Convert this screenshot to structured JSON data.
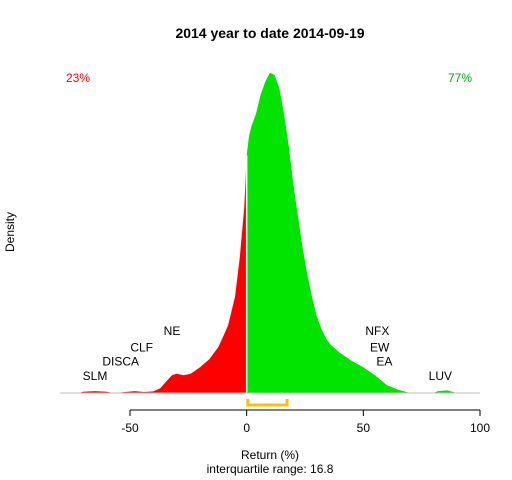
{
  "chart_data": {
    "type": "area",
    "title": "2014  year to date 2014-09-19",
    "xlabel": "Return (%)",
    "ylabel": "Density",
    "subtitle": "interquartile range: 16.8",
    "xlim": [
      -80,
      100
    ],
    "x_ticks": [
      -50,
      0,
      50,
      100
    ],
    "x_tick_labels": [
      "-50",
      "0",
      "50",
      "100"
    ],
    "ylim": [
      0,
      1.0
    ],
    "grid": false,
    "negative_share": "23%",
    "positive_share": "77%",
    "split_at": 0,
    "interquartile": {
      "q1": 0.5,
      "q3": 17.3,
      "width_label": "16.8"
    },
    "density": [
      [
        -72,
        0.0
      ],
      [
        -70,
        0.004
      ],
      [
        -65,
        0.006
      ],
      [
        -60,
        0.004
      ],
      [
        -57,
        0.0
      ],
      [
        -52,
        0.003
      ],
      [
        -48,
        0.006
      ],
      [
        -44,
        0.003
      ],
      [
        -40,
        0.005
      ],
      [
        -37,
        0.015
      ],
      [
        -34,
        0.04
      ],
      [
        -32,
        0.055
      ],
      [
        -30,
        0.06
      ],
      [
        -27,
        0.055
      ],
      [
        -24,
        0.06
      ],
      [
        -20,
        0.08
      ],
      [
        -16,
        0.105
      ],
      [
        -12,
        0.145
      ],
      [
        -8,
        0.21
      ],
      [
        -5,
        0.3
      ],
      [
        -3,
        0.42
      ],
      [
        -1,
        0.58
      ],
      [
        0,
        0.74
      ],
      [
        1,
        0.8
      ],
      [
        2,
        0.83
      ],
      [
        4,
        0.87
      ],
      [
        6,
        0.93
      ],
      [
        8,
        0.97
      ],
      [
        10,
        0.998
      ],
      [
        12,
        0.99
      ],
      [
        14,
        0.95
      ],
      [
        16,
        0.87
      ],
      [
        18,
        0.77
      ],
      [
        20,
        0.65
      ],
      [
        22,
        0.55
      ],
      [
        24,
        0.45
      ],
      [
        26,
        0.37
      ],
      [
        28,
        0.3
      ],
      [
        30,
        0.24
      ],
      [
        32,
        0.2
      ],
      [
        34,
        0.17
      ],
      [
        36,
        0.15
      ],
      [
        40,
        0.125
      ],
      [
        45,
        0.1
      ],
      [
        50,
        0.08
      ],
      [
        55,
        0.055
      ],
      [
        60,
        0.025
      ],
      [
        65,
        0.01
      ],
      [
        70,
        0.0
      ],
      [
        80,
        0.0
      ],
      [
        82,
        0.006
      ],
      [
        86,
        0.008
      ],
      [
        90,
        0.0
      ]
    ],
    "annotations": [
      {
        "text": "SLM",
        "x": -65,
        "y": 0.04
      },
      {
        "text": "DISCA",
        "x": -54,
        "y": 0.085
      },
      {
        "text": "CLF",
        "x": -45,
        "y": 0.13
      },
      {
        "text": "NE",
        "x": -32,
        "y": 0.18
      },
      {
        "text": "NFX",
        "x": 56,
        "y": 0.18
      },
      {
        "text": "EW",
        "x": 57,
        "y": 0.13
      },
      {
        "text": "EA",
        "x": 59,
        "y": 0.085
      },
      {
        "text": "LUV",
        "x": 83,
        "y": 0.04
      }
    ],
    "colors": {
      "negative": "#ff0000",
      "positive": "#00e400",
      "iqr": "#ffc000",
      "negative_text": "#ff0000",
      "positive_text": "#00aa00",
      "baseline": "#bebebe"
    }
  }
}
